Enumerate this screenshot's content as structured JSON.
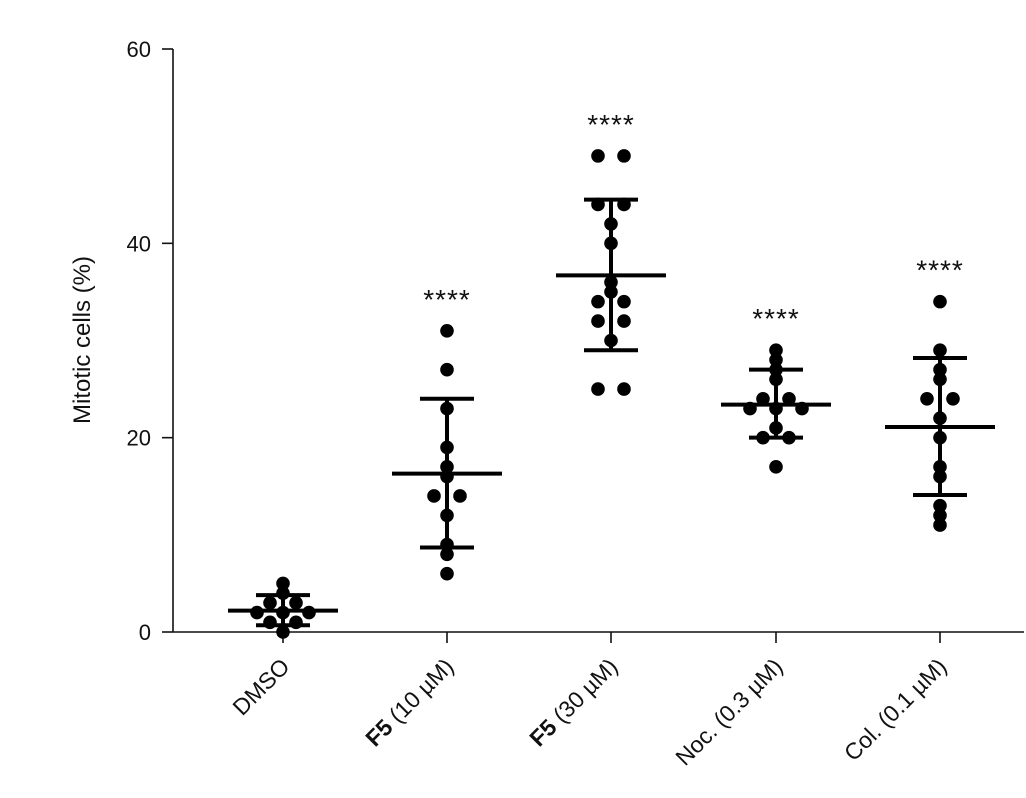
{
  "chart_data": {
    "type": "scatter",
    "ylabel": "Mitotic cells (%)",
    "xlabel": "",
    "ylim": [
      0,
      60
    ],
    "yticks": [
      0,
      20,
      40,
      60
    ],
    "yticks_text": [
      "0",
      "20",
      "40",
      "60"
    ],
    "grid": false,
    "categories": [
      "DMSO",
      "F5 (10 µM)",
      "F5 (30 µM)",
      "Noc. (0.3 µM)",
      "Col. (0.1 µM)"
    ],
    "category_labels": [
      {
        "bold": "",
        "rest": "DMSO"
      },
      {
        "bold": "F5",
        "rest": " (10 µM)"
      },
      {
        "bold": "F5",
        "rest": " (30 µM)"
      },
      {
        "bold": "",
        "rest": "Noc. (0.3 µM)"
      },
      {
        "bold": "",
        "rest": "Col. (0.1 µM)"
      }
    ],
    "groups": [
      {
        "name": "DMSO",
        "points": [
          4,
          5,
          2,
          2,
          3,
          3,
          2,
          0,
          1,
          1
        ],
        "mean": 2.2,
        "sd_low": 0.7,
        "sd_high": 3.8,
        "significance": ""
      },
      {
        "name": "F5 (10 µM)",
        "points": [
          31,
          27,
          23,
          19,
          16,
          17,
          14,
          14,
          12,
          9,
          8,
          6
        ],
        "mean": 16.3,
        "sd_low": 8.7,
        "sd_high": 24,
        "significance": "****"
      },
      {
        "name": "F5 (30 µM)",
        "points": [
          49,
          49,
          44,
          44,
          42,
          40,
          36,
          35,
          34,
          34,
          32,
          32,
          30,
          25,
          25
        ],
        "mean": 36.7,
        "sd_low": 29,
        "sd_high": 44.5,
        "significance": "****"
      },
      {
        "name": "Noc. (0.3 µM)",
        "points": [
          29,
          28,
          27,
          26,
          24,
          24,
          23,
          23,
          23,
          21,
          20,
          20,
          17
        ],
        "mean": 23.4,
        "sd_low": 20,
        "sd_high": 27,
        "significance": "****"
      },
      {
        "name": "Col. (0.1 µM)",
        "points": [
          34,
          29,
          27,
          26,
          24,
          24,
          22,
          20,
          17,
          16,
          13,
          12,
          11
        ],
        "mean": 21.1,
        "sd_low": 14.1,
        "sd_high": 28.2,
        "significance": "****"
      }
    ]
  }
}
